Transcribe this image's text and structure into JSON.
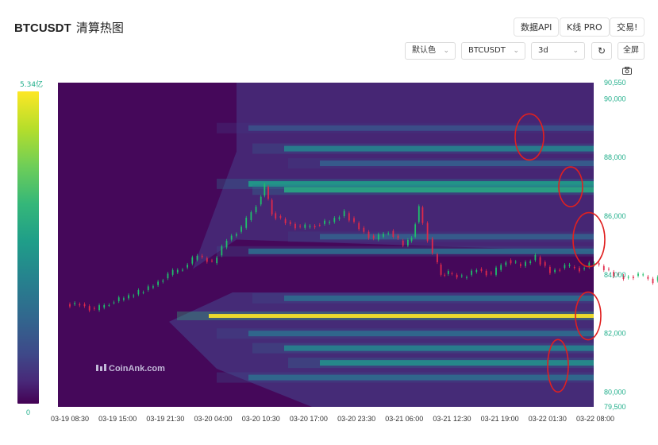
{
  "header": {
    "symbol": "BTCUSDT",
    "title_suffix": "清算热图",
    "buttons": {
      "data_api": "数据API",
      "kline_pro": "K线 PRO",
      "trade": "交易!"
    }
  },
  "controls": {
    "color_scheme": "默认色",
    "pair": "BTCUSDT",
    "range": "3d",
    "fullscreen": "全屏"
  },
  "icons": {
    "refresh": "refresh-icon",
    "camera": "camera-icon",
    "chevron": "chevron-down-icon"
  },
  "colorbar": {
    "max_label": "5.34亿",
    "min_label": "0"
  },
  "watermark": "CoinAnk.com",
  "annotation_color": "#e02020",
  "chart_data": {
    "type": "heatmap",
    "title": "BTCUSDT 清算热图",
    "y_axis": {
      "ylim": [
        79500,
        90550
      ],
      "tick_labels": [
        "90,550",
        "90,000",
        "88,000",
        "86,000",
        "84,000",
        "82,000",
        "80,000",
        "79,500"
      ],
      "tick_values": [
        90550,
        90000,
        88000,
        86000,
        84000,
        82000,
        80000,
        79500
      ]
    },
    "x_axis": {
      "tick_labels": [
        "03-19 08:30",
        "03-19 15:00",
        "03-19 21:30",
        "03-20 04:00",
        "03-20 10:30",
        "03-20 17:00",
        "03-20 23:30",
        "03-21 06:00",
        "03-21 12:30",
        "03-21 19:00",
        "03-22 01:30",
        "03-22 08:00"
      ],
      "hours_per_tick": 6.5
    },
    "price_series": {
      "name": "BTCUSDT",
      "hours": [
        0,
        2,
        4,
        6,
        8,
        10,
        12,
        14,
        16,
        18,
        20,
        22,
        24,
        26,
        27,
        28,
        30,
        32,
        34,
        36,
        38,
        40,
        42,
        44,
        46,
        47,
        48,
        50,
        51,
        52,
        54,
        56,
        58,
        60,
        62,
        64,
        66,
        68,
        70,
        72,
        74,
        76,
        78,
        80,
        82,
        84,
        86,
        88
      ],
      "prices": [
        83000,
        82800,
        83050,
        83200,
        83400,
        83650,
        84000,
        84250,
        84650,
        84400,
        85200,
        85600,
        86400,
        87000,
        86100,
        85800,
        85600,
        85700,
        85800,
        86100,
        85600,
        85200,
        85500,
        85000,
        85300,
        86300,
        84700,
        84000,
        84050,
        83900,
        84200,
        84000,
        84500,
        84300,
        84600,
        84100,
        84300,
        84200,
        84400,
        84100,
        83900,
        84000,
        83800,
        84300,
        84200,
        84500,
        84200,
        84300
      ]
    },
    "liquidation_bands": [
      {
        "price": 89000,
        "intensity": 0.25
      },
      {
        "price": 88300,
        "intensity": 0.45
      },
      {
        "price": 87800,
        "intensity": 0.3
      },
      {
        "price": 87100,
        "intensity": 0.55
      },
      {
        "price": 86900,
        "intensity": 0.6
      },
      {
        "price": 85300,
        "intensity": 0.3
      },
      {
        "price": 84800,
        "intensity": 0.35
      },
      {
        "price": 83200,
        "intensity": 0.35
      },
      {
        "price": 82600,
        "intensity": 1.0
      },
      {
        "price": 82000,
        "intensity": 0.35
      },
      {
        "price": 81500,
        "intensity": 0.45
      },
      {
        "price": 81000,
        "intensity": 0.5
      },
      {
        "price": 80500,
        "intensity": 0.35
      }
    ],
    "colorbar_range": [
      0,
      534000000
    ],
    "colorscale": "viridis",
    "grid": false,
    "annotations": [
      {
        "shape": "ellipse",
        "price": 88700
      },
      {
        "shape": "ellipse",
        "price": 87000
      },
      {
        "shape": "ellipse",
        "price": 85200
      },
      {
        "shape": "ellipse",
        "price": 82600
      },
      {
        "shape": "ellipse",
        "price": 80900
      }
    ]
  }
}
